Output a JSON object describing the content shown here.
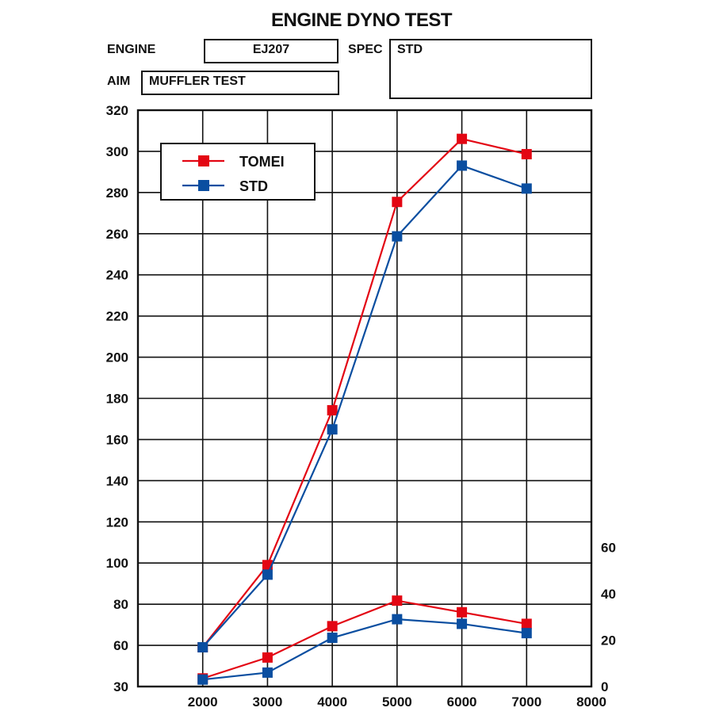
{
  "header": {
    "title": "ENGINE DYNO TEST",
    "engine_label": "ENGINE",
    "engine_value": "EJ207",
    "spec_label": "SPEC",
    "spec_value": "STD",
    "aim_label": "AIM",
    "aim_value": "MUFFLER TEST"
  },
  "colors": {
    "tomei": "#e30613",
    "std": "#0a4ea0",
    "grid": "#111111"
  },
  "chart_data": {
    "type": "line",
    "title": "ENGINE DYNO TEST",
    "x": [
      2000,
      3000,
      4000,
      5000,
      6000,
      7000
    ],
    "x_ticks": [
      2000,
      3000,
      4000,
      5000,
      6000,
      7000,
      8000
    ],
    "xlim": [
      1000,
      8000
    ],
    "y_left_ticks": [
      30,
      60,
      80,
      100,
      120,
      140,
      160,
      180,
      200,
      220,
      240,
      260,
      280,
      300,
      320
    ],
    "ylim_left": [
      40,
      320
    ],
    "y_right_ticks": [
      0,
      20,
      40,
      60
    ],
    "ylim_right": [
      0,
      60
    ],
    "grid": true,
    "legend_position": "top-left",
    "series": [
      {
        "name": "TOMEI",
        "color": "#e30613",
        "axis": "left",
        "values": [
          39,
          82,
          163,
          272,
          305,
          297
        ]
      },
      {
        "name": "STD",
        "color": "#0a4ea0",
        "axis": "left",
        "values": [
          39,
          77,
          153,
          254,
          291,
          279
        ]
      },
      {
        "name": "TOMEI",
        "color": "#e30613",
        "axis": "right",
        "values": [
          3.5,
          12.5,
          26,
          37,
          32,
          27
        ]
      },
      {
        "name": "STD",
        "color": "#0a4ea0",
        "axis": "right",
        "values": [
          3,
          6,
          21,
          29,
          27,
          23
        ]
      }
    ]
  }
}
